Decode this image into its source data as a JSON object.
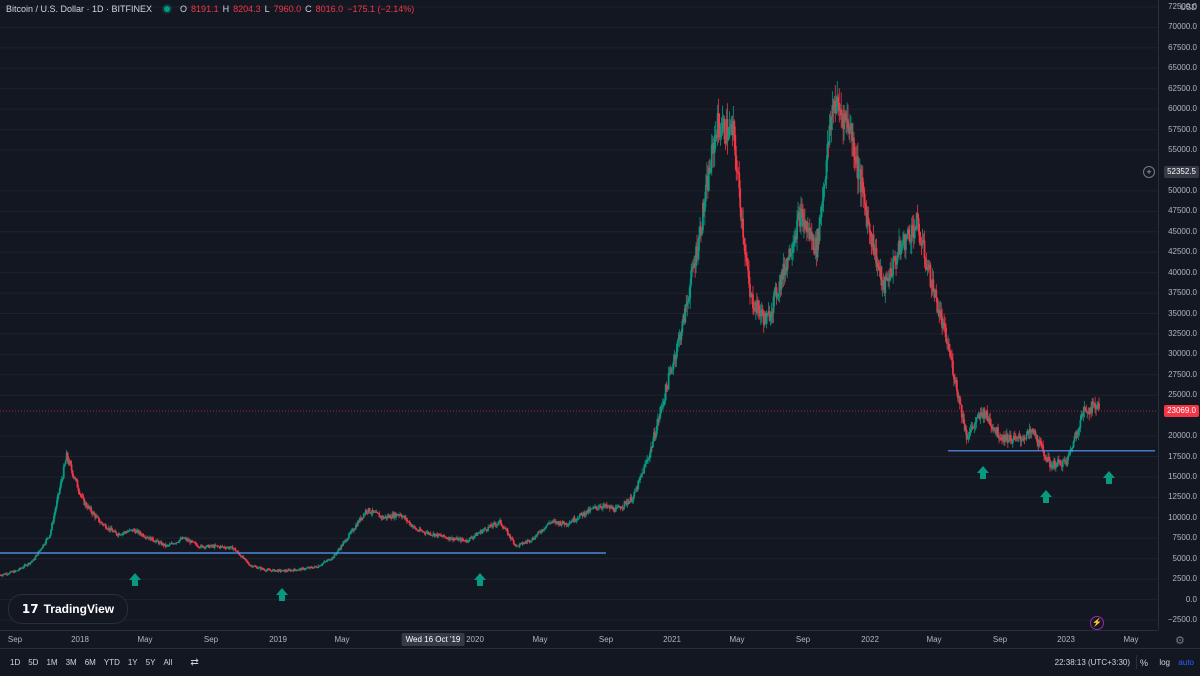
{
  "legend": {
    "symbol": "Bitcoin / U.S. Dollar · 1D · BITFINEX",
    "o_label": "O",
    "o": "8191.1",
    "h_label": "H",
    "h": "8204.3",
    "l_label": "L",
    "l": "7960.0",
    "c_label": "C",
    "c": "8016.0",
    "change": "−175.1 (−2.14%)"
  },
  "currency": "USD",
  "price_axis": {
    "ticks": [
      "72500.0",
      "70000.0",
      "67500.0",
      "65000.0",
      "62500.0",
      "60000.0",
      "57500.0",
      "55000.0",
      "52352.5",
      "50000.0",
      "47500.0",
      "45000.0",
      "42500.0",
      "40000.0",
      "37500.0",
      "35000.0",
      "32500.0",
      "30000.0",
      "27500.0",
      "25000.0",
      "23069.0",
      "20000.0",
      "17500.0",
      "15000.0",
      "12500.0",
      "10000.0",
      "7500.0",
      "5000.0",
      "2500.0",
      "0.0",
      "−2500.0"
    ],
    "crosshair_price": "52352.5",
    "last_price": "23069.0"
  },
  "time_axis": {
    "labels": [
      "Sep",
      "2018",
      "May",
      "Sep",
      "2019",
      "May",
      "2020",
      "May",
      "Sep",
      "2021",
      "May",
      "Sep",
      "2022",
      "May",
      "Sep",
      "2023",
      "May"
    ],
    "crosshair_date": "Wed 16 Oct '19"
  },
  "bottom_bar": {
    "ranges": [
      "1D",
      "5D",
      "1M",
      "3M",
      "6M",
      "YTD",
      "1Y",
      "5Y",
      "All"
    ],
    "clock": "22:38:13 (UTC+3:30)",
    "percent": "%",
    "log": "log",
    "auto": "auto"
  },
  "logo": {
    "text": "TradingView"
  },
  "colors": {
    "up": "#089981",
    "down": "#f23645",
    "line": "#5b9cf6",
    "arrow": "#089981",
    "background": "#131722"
  },
  "chart_data": {
    "type": "line",
    "title": "Bitcoin / U.S. Dollar · 1D · BITFINEX",
    "ylabel": "USD",
    "ylim": [
      -2500,
      72500
    ],
    "x": [
      "2017-08",
      "2017-09",
      "2017-10",
      "2017-11",
      "2017-12",
      "2018-01",
      "2018-02",
      "2018-03",
      "2018-04",
      "2018-05",
      "2018-06",
      "2018-07",
      "2018-08",
      "2018-09",
      "2018-10",
      "2018-11",
      "2018-12",
      "2019-01",
      "2019-02",
      "2019-03",
      "2019-04",
      "2019-05",
      "2019-06",
      "2019-07",
      "2019-08",
      "2019-09",
      "2019-10",
      "2019-11",
      "2019-12",
      "2020-01",
      "2020-02",
      "2020-03",
      "2020-04",
      "2020-05",
      "2020-06",
      "2020-07",
      "2020-08",
      "2020-09",
      "2020-10",
      "2020-11",
      "2020-12",
      "2021-01",
      "2021-02",
      "2021-03",
      "2021-04",
      "2021-05",
      "2021-06",
      "2021-07",
      "2021-08",
      "2021-09",
      "2021-10",
      "2021-11",
      "2021-12",
      "2022-01",
      "2022-02",
      "2022-03",
      "2022-04",
      "2022-05",
      "2022-06",
      "2022-07",
      "2022-08",
      "2022-09",
      "2022-10",
      "2022-11",
      "2022-12",
      "2023-01",
      "2023-02"
    ],
    "series": [
      {
        "values": [
          3000,
          3500,
          4800,
          8000,
          17500,
          12000,
          9500,
          8000,
          8500,
          7500,
          6500,
          7500,
          6500,
          6500,
          6300,
          4200,
          3600,
          3500,
          3700,
          4000,
          5200,
          8000,
          11000,
          10000,
          10500,
          8500,
          8000,
          7500,
          7200,
          8500,
          9500,
          6500,
          7500,
          9500,
          9300,
          10500,
          11500,
          11000,
          12500,
          18000,
          26000,
          34000,
          45000,
          58000,
          57000,
          37000,
          34000,
          40000,
          47000,
          43000,
          61000,
          58000,
          47000,
          38000,
          43000,
          46000,
          38000,
          30000,
          20000,
          23000,
          20000,
          19500,
          20500,
          16500,
          16800,
          23000,
          24000
        ]
      }
    ],
    "support_levels": [
      5700,
      18200
    ]
  }
}
